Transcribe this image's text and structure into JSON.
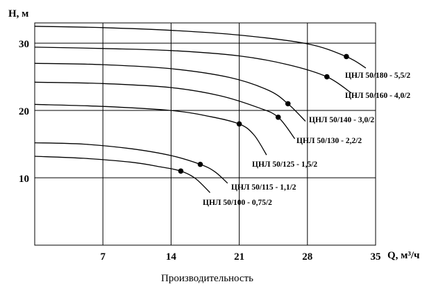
{
  "chart_data": {
    "type": "line",
    "xlabel": "Q, м³/ч",
    "ylabel": "H, м",
    "caption": "Производительность",
    "xlim": [
      0,
      35
    ],
    "ylim": [
      0,
      33
    ],
    "xticks": [
      7,
      14,
      21,
      28,
      35
    ],
    "yticks": [
      10,
      20,
      30
    ],
    "grid": true,
    "series": [
      {
        "name": "ЦНЛ 50/180 - 5,5/2",
        "x": [
          0,
          7,
          14,
          21,
          28,
          32,
          34
        ],
        "y": [
          32.5,
          32.3,
          31.9,
          31.2,
          29.9,
          28.0,
          26.3
        ],
        "marker": {
          "x": 32,
          "y": 28.0
        }
      },
      {
        "name": "ЦНЛ 50/160 - 4,0/2",
        "x": [
          0,
          7,
          14,
          21,
          26,
          30,
          32.5
        ],
        "y": [
          29.4,
          29.2,
          28.9,
          28.1,
          26.8,
          25.0,
          22.6
        ],
        "marker": {
          "x": 30,
          "y": 25.0
        }
      },
      {
        "name": "ЦНЛ 50/140 - 3,0/2",
        "x": [
          0,
          7,
          14,
          20,
          24,
          26,
          27.8
        ],
        "y": [
          27.0,
          26.8,
          26.2,
          24.9,
          23.0,
          21.0,
          18.4
        ],
        "marker": {
          "x": 26,
          "y": 21.0
        }
      },
      {
        "name": "ЦНЛ 50/130 - 2,2/2",
        "x": [
          0,
          7,
          14,
          19,
          23,
          25,
          26.7
        ],
        "y": [
          24.2,
          24.0,
          23.4,
          22.2,
          20.4,
          19.0,
          15.8
        ],
        "marker": {
          "x": 25,
          "y": 19.0
        }
      },
      {
        "name": "ЦНЛ 50/125 - 1,5/2",
        "x": [
          0,
          7,
          14,
          18,
          21,
          22.5,
          23.8
        ],
        "y": [
          20.9,
          20.6,
          20.0,
          19.1,
          18.0,
          16.4,
          13.4
        ],
        "marker": {
          "x": 21,
          "y": 18.0
        }
      },
      {
        "name": "ЦНЛ 50/115 - 1,1/2",
        "x": [
          0,
          5,
          10,
          14,
          17,
          18.5,
          19.8
        ],
        "y": [
          15.2,
          15.0,
          14.3,
          13.3,
          12.0,
          10.9,
          9.2
        ],
        "marker": {
          "x": 17,
          "y": 12.0
        }
      },
      {
        "name": "ЦНЛ 50/100 - 0,75/2",
        "x": [
          0,
          5,
          10,
          13,
          15,
          16.5,
          18.0
        ],
        "y": [
          13.2,
          12.9,
          12.3,
          11.6,
          11.0,
          9.9,
          7.8
        ],
        "marker": {
          "x": 15,
          "y": 11.0
        }
      }
    ]
  }
}
